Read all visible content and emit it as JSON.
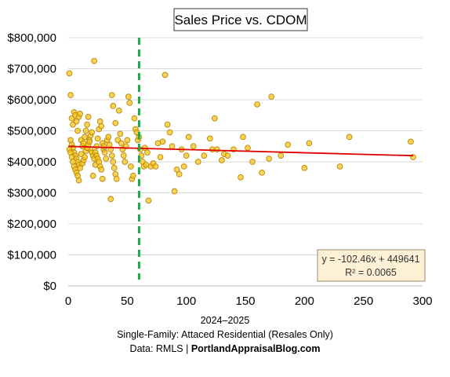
{
  "chart_data": {
    "type": "scatter",
    "title": "Sales Price vs. CDOM",
    "xlabel": "",
    "ylabel": "",
    "xlim": [
      0,
      300
    ],
    "ylim": [
      0,
      800000
    ],
    "x_ticks": [
      "0",
      "50",
      "100",
      "150",
      "200",
      "250",
      "300"
    ],
    "y_ticks": [
      "$0",
      "$100,000",
      "$200,000",
      "$300,000",
      "$400,000",
      "$500,000",
      "$600,000",
      "$700,000",
      "$800,000"
    ],
    "grid": "horizontal",
    "colors": {
      "point_fill": "#f5c518",
      "point_stroke": "#b8860b",
      "trendline": "#e00000",
      "reference_line": "#1aaa4a",
      "annotation_box": "#fdf0d5",
      "annotation_border": "#9a8a6a"
    },
    "reference_line": {
      "x": 60
    },
    "trendline": {
      "slope": -102.46,
      "intercept": 449641
    },
    "annotation": {
      "equation": "y = -102.46x + 449641",
      "r_squared": "R² = 0.0065"
    },
    "series": [
      {
        "points": [
          [
            1,
            685000
          ],
          [
            2,
            615000
          ],
          [
            3,
            540000
          ],
          [
            4,
            520000
          ],
          [
            5,
            560000
          ],
          [
            6,
            550000
          ],
          [
            7,
            530000
          ],
          [
            8,
            500000
          ],
          [
            9,
            545000
          ],
          [
            10,
            555000
          ],
          [
            2,
            470000
          ],
          [
            3,
            455000
          ],
          [
            4,
            445000
          ],
          [
            5,
            430000
          ],
          [
            6,
            420000
          ],
          [
            7,
            410000
          ],
          [
            8,
            400000
          ],
          [
            9,
            390000
          ],
          [
            10,
            380000
          ],
          [
            11,
            470000
          ],
          [
            1,
            440000
          ],
          [
            2,
            430000
          ],
          [
            3,
            415000
          ],
          [
            4,
            400000
          ],
          [
            5,
            385000
          ],
          [
            6,
            375000
          ],
          [
            7,
            365000
          ],
          [
            8,
            355000
          ],
          [
            9,
            340000
          ],
          [
            12,
            450000
          ],
          [
            13,
            460000
          ],
          [
            14,
            480000
          ],
          [
            15,
            500000
          ],
          [
            16,
            520000
          ],
          [
            17,
            545000
          ],
          [
            18,
            470000
          ],
          [
            19,
            440000
          ],
          [
            20,
            430000
          ],
          [
            21,
            420000
          ],
          [
            22,
            410000
          ],
          [
            11,
            425000
          ],
          [
            12,
            395000
          ],
          [
            13,
            405000
          ],
          [
            14,
            415000
          ],
          [
            15,
            435000
          ],
          [
            16,
            445000
          ],
          [
            17,
            455000
          ],
          [
            18,
            465000
          ],
          [
            19,
            485000
          ],
          [
            20,
            495000
          ],
          [
            21,
            355000
          ],
          [
            22,
            725000
          ],
          [
            23,
            390000
          ],
          [
            24,
            450000
          ],
          [
            25,
            475000
          ],
          [
            26,
            505000
          ],
          [
            27,
            530000
          ],
          [
            28,
            515000
          ],
          [
            29,
            460000
          ],
          [
            30,
            440000
          ],
          [
            23,
            430000
          ],
          [
            24,
            420000
          ],
          [
            25,
            410000
          ],
          [
            26,
            400000
          ],
          [
            27,
            385000
          ],
          [
            28,
            375000
          ],
          [
            29,
            345000
          ],
          [
            30,
            450000
          ],
          [
            31,
            430000
          ],
          [
            32,
            410000
          ],
          [
            33,
            470000
          ],
          [
            34,
            480000
          ],
          [
            35,
            455000
          ],
          [
            36,
            440000
          ],
          [
            37,
            420000
          ],
          [
            38,
            400000
          ],
          [
            39,
            380000
          ],
          [
            40,
            360000
          ],
          [
            41,
            345000
          ],
          [
            42,
            470000
          ],
          [
            36,
            280000
          ],
          [
            37,
            615000
          ],
          [
            38,
            580000
          ],
          [
            40,
            525000
          ],
          [
            43,
            565000
          ],
          [
            44,
            490000
          ],
          [
            45,
            460000
          ],
          [
            46,
            440000
          ],
          [
            47,
            420000
          ],
          [
            48,
            400000
          ],
          [
            49,
            450000
          ],
          [
            50,
            470000
          ],
          [
            51,
            610000
          ],
          [
            52,
            590000
          ],
          [
            53,
            385000
          ],
          [
            54,
            345000
          ],
          [
            55,
            355000
          ],
          [
            56,
            540000
          ],
          [
            57,
            505000
          ],
          [
            58,
            495000
          ],
          [
            59,
            470000
          ],
          [
            60,
            480000
          ],
          [
            61,
            440000
          ],
          [
            62,
            420000
          ],
          [
            63,
            400000
          ],
          [
            64,
            385000
          ],
          [
            65,
            445000
          ],
          [
            66,
            390000
          ],
          [
            67,
            430000
          ],
          [
            68,
            275000
          ],
          [
            70,
            385000
          ],
          [
            72,
            395000
          ],
          [
            74,
            385000
          ],
          [
            76,
            460000
          ],
          [
            78,
            415000
          ],
          [
            80,
            465000
          ],
          [
            82,
            680000
          ],
          [
            84,
            520000
          ],
          [
            86,
            495000
          ],
          [
            88,
            450000
          ],
          [
            90,
            305000
          ],
          [
            92,
            375000
          ],
          [
            94,
            360000
          ],
          [
            96,
            440000
          ],
          [
            98,
            385000
          ],
          [
            100,
            420000
          ],
          [
            102,
            480000
          ],
          [
            106,
            450000
          ],
          [
            110,
            400000
          ],
          [
            115,
            420000
          ],
          [
            120,
            475000
          ],
          [
            122,
            440000
          ],
          [
            124,
            540000
          ],
          [
            126,
            440000
          ],
          [
            130,
            405000
          ],
          [
            132,
            425000
          ],
          [
            135,
            420000
          ],
          [
            140,
            440000
          ],
          [
            146,
            350000
          ],
          [
            148,
            480000
          ],
          [
            152,
            445000
          ],
          [
            156,
            400000
          ],
          [
            160,
            585000
          ],
          [
            164,
            365000
          ],
          [
            170,
            410000
          ],
          [
            172,
            610000
          ],
          [
            180,
            420000
          ],
          [
            186,
            455000
          ],
          [
            200,
            380000
          ],
          [
            204,
            460000
          ],
          [
            230,
            385000
          ],
          [
            238,
            480000
          ],
          [
            290,
            465000
          ],
          [
            292,
            415000
          ]
        ]
      }
    ]
  },
  "footer": {
    "line1": "2024–2025",
    "line2": "Single-Family: Attaced Residential (Resales Only)",
    "line3_prefix": "Data: RMLS | ",
    "line3_site": "PortlandAppraisalBlog.com"
  }
}
